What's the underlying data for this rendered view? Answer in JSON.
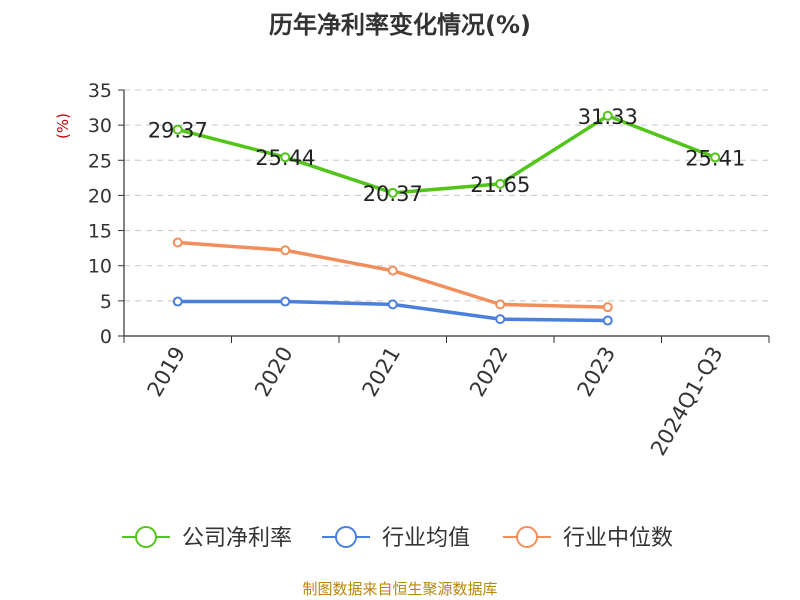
{
  "chart_data": {
    "type": "line",
    "title": "历年净利率变化情况(%)",
    "ylabel": "(%)",
    "xlabel": "",
    "categories": [
      "2019",
      "2020",
      "2021",
      "2022",
      "2023",
      "2024Q1-Q3"
    ],
    "ylim": [
      0,
      35
    ],
    "yticks": [
      0,
      5,
      10,
      15,
      20,
      25,
      30,
      35
    ],
    "grid": true,
    "legend_position": "bottom",
    "series": [
      {
        "name": "公司净利率",
        "color": "#52c41a",
        "values": [
          29.37,
          25.44,
          20.37,
          21.65,
          31.33,
          25.41
        ],
        "labels": [
          "29.37",
          "25.44",
          "20.37",
          "21.65",
          "31.33",
          "25.41"
        ]
      },
      {
        "name": "行业均值",
        "color": "#4a7fdb",
        "values": [
          4.9,
          4.9,
          4.5,
          2.4,
          2.2,
          null
        ]
      },
      {
        "name": "行业中位数",
        "color": "#f28e5b",
        "values": [
          13.3,
          12.2,
          9.3,
          4.5,
          4.1,
          null
        ]
      }
    ],
    "source": "制图数据来自恒生聚源数据库"
  }
}
